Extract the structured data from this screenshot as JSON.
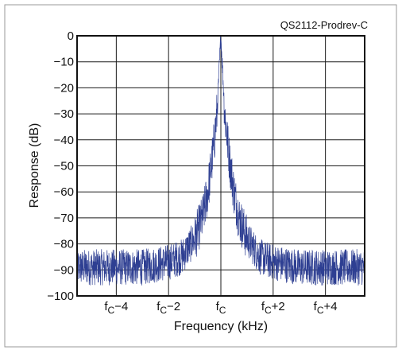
{
  "chart_data": {
    "type": "line",
    "figure_id": "QS2112-Prodrev-C",
    "title": "",
    "xlabel": "Frequency (kHz)",
    "ylabel": "Response (dB)",
    "xlim": [
      -5.5,
      5.5
    ],
    "ylim": [
      -100,
      0
    ],
    "x_ticks": [
      -4,
      -2,
      0,
      2,
      4
    ],
    "x_tick_labels": [
      {
        "base": "f",
        "sub": "C",
        "suffix": "−4"
      },
      {
        "base": "f",
        "sub": "C",
        "suffix": "−2"
      },
      {
        "base": "f",
        "sub": "C",
        "suffix": ""
      },
      {
        "base": "f",
        "sub": "C",
        "suffix": "+2"
      },
      {
        "base": "f",
        "sub": "C",
        "suffix": "+4"
      }
    ],
    "y_ticks": [
      0,
      -10,
      -20,
      -30,
      -40,
      -50,
      -60,
      -70,
      -80,
      -90,
      -100
    ],
    "y_tick_labels": [
      "0",
      "−10",
      "−20",
      "−30",
      "−40",
      "−50",
      "−60",
      "−70",
      "−80",
      "−90",
      "−100"
    ],
    "grid": true,
    "legend": "none",
    "series": [
      {
        "color": "#2e3f92",
        "x": [
          -5.5,
          -5.0,
          -4.5,
          -4.0,
          -3.5,
          -3.0,
          -2.5,
          -2.0,
          -1.5,
          -1.0,
          -0.7,
          -0.5,
          -0.3,
          -0.15,
          0.0,
          0.15,
          0.3,
          0.5,
          0.7,
          1.0,
          1.5,
          2.0,
          2.5,
          3.0,
          3.5,
          4.0,
          4.5,
          5.0,
          5.5
        ],
        "y": [
          -89,
          -89,
          -89,
          -89,
          -89,
          -89,
          -88,
          -87,
          -85,
          -78,
          -70,
          -60,
          -45,
          -30,
          0,
          -30,
          -45,
          -60,
          -70,
          -78,
          -85,
          -87,
          -88,
          -89,
          -89,
          -89,
          -89,
          -89,
          -89
        ]
      }
    ]
  }
}
